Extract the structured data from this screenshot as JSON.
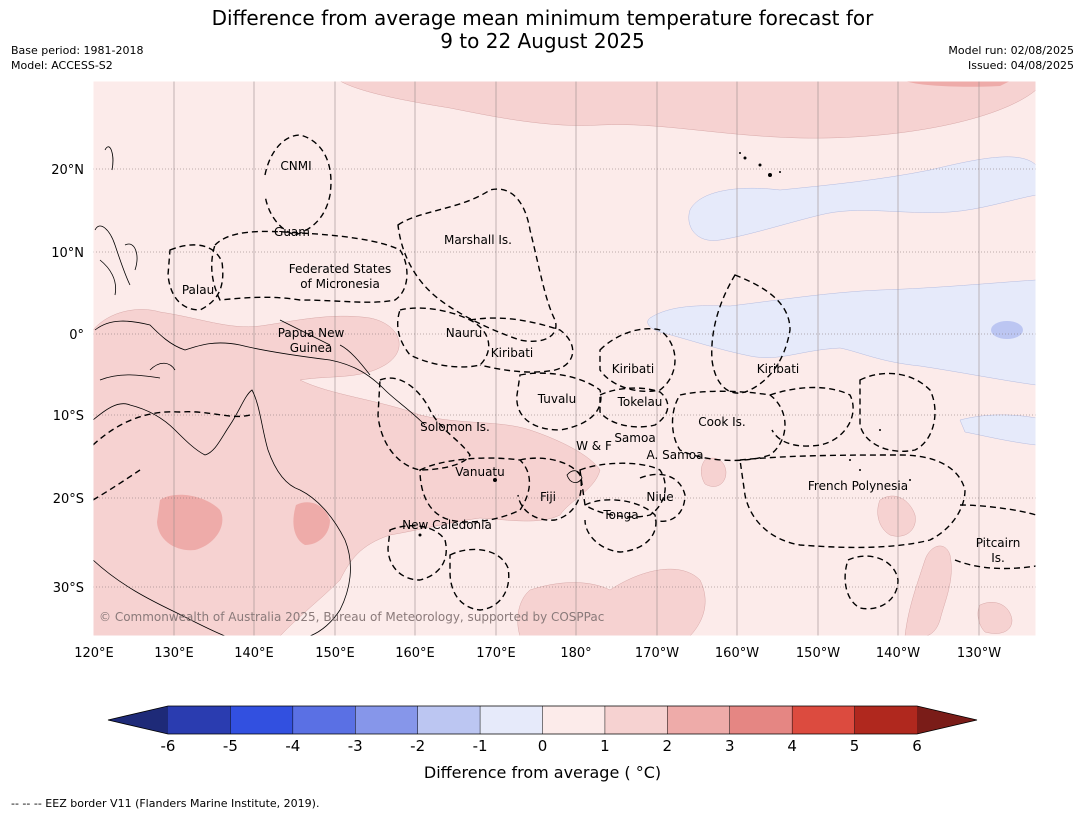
{
  "title": {
    "line1": "Difference from average mean minimum temperature forecast for",
    "line2": "9 to 22 August 2025"
  },
  "meta": {
    "base_period": "Base period: 1981-2018",
    "model": "Model: ACCESS-S2",
    "model_run": "Model run: 02/08/2025",
    "issued": "Issued: 04/08/2025"
  },
  "axes": {
    "lon_labels": [
      "120°E",
      "130°E",
      "140°E",
      "150°E",
      "160°E",
      "170°E",
      "180°",
      "170°W",
      "160°W",
      "150°W",
      "140°W",
      "130°W"
    ],
    "lat_labels": [
      "20°N",
      "10°N",
      "0°",
      "10°S",
      "20°S",
      "30°S"
    ]
  },
  "regions": [
    "CNMI",
    "Guam",
    "Marshall Is.",
    "Federated States",
    "of Micronesia",
    "Palau",
    "Papua New",
    "Guinea",
    "Nauru",
    "Kiribati",
    "Kiribati",
    "Kiribati",
    "Tuvalu",
    "Tokelau",
    "Solomon Is.",
    "W & F",
    "Samoa",
    "A. Samoa",
    "Cook Is.",
    "Vanuatu",
    "Fiji",
    "Niue",
    "Tonga",
    "French Polynesia",
    "New Caledonia",
    "Pitcairn",
    "Is."
  ],
  "copyright": "© Commonwealth of Australia 2025, Bureau of Meteorology, supported by COSPPac",
  "colorbar": {
    "ticks": [
      "-6",
      "-5",
      "-4",
      "-3",
      "-2",
      "-1",
      "0",
      "1",
      "2",
      "3",
      "4",
      "5",
      "6"
    ],
    "colors": [
      "#2a3cb0",
      "#3250e0",
      "#5a70e4",
      "#8696ea",
      "#bcc6f2",
      "#e6eafa",
      "#fcebea",
      "#f6d2d1",
      "#eeaba9",
      "#e58683",
      "#dc4b3f",
      "#b0281e"
    ],
    "under_color": "#1e2a78",
    "over_color": "#7a1c18",
    "label": "Difference from average ( °C)"
  },
  "footnote": "--  --  -- EEZ border V11 (Flanders Marine Institute, 2019)."
}
